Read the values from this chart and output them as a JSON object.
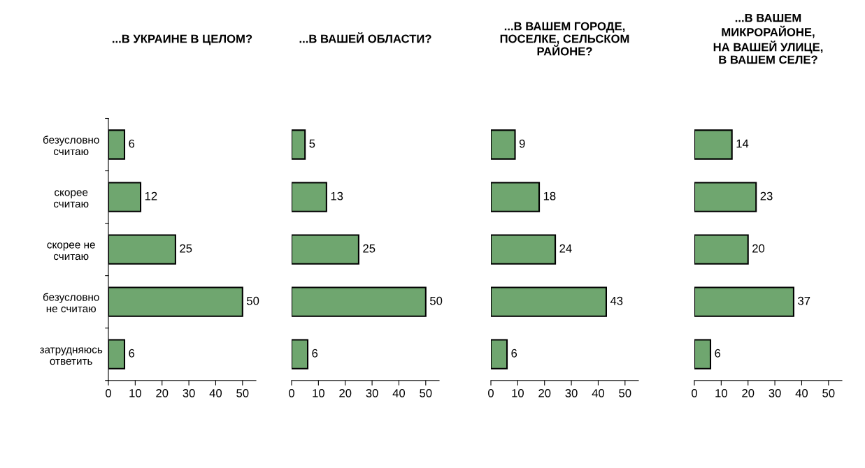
{
  "chart_data": [
    {
      "type": "bar",
      "orientation": "horizontal",
      "title": "...В УКРАИНЕ В ЦЕЛОМ?",
      "categories": [
        "безусловно\nсчитаю",
        "скорее\nсчитаю",
        "скорее не\nсчитаю",
        "безусловно\nне считаю",
        "затрудняюсь\nответить"
      ],
      "values": [
        6,
        12,
        25,
        50,
        6
      ],
      "color": "#6fa66f",
      "xlim": [
        0,
        55
      ],
      "xticks": [
        0,
        10,
        20,
        30,
        40,
        50
      ],
      "data_labels": true,
      "grid": false,
      "legend": false
    },
    {
      "type": "bar",
      "orientation": "horizontal",
      "title": "...В ВАШЕЙ ОБЛАСТИ?",
      "categories": [
        null,
        null,
        null,
        null,
        null
      ],
      "values": [
        5,
        13,
        25,
        50,
        6
      ],
      "color": "#6fa66f",
      "xlim": [
        0,
        55
      ],
      "xticks": [
        0,
        10,
        20,
        30,
        40,
        50
      ],
      "data_labels": true,
      "grid": false,
      "legend": false
    },
    {
      "type": "bar",
      "orientation": "horizontal",
      "title": "...В ВАШЕМ ГОРОДЕ,\nПОСЕЛКЕ, СЕЛЬСКОМ\nРАЙОНЕ?",
      "categories": [
        null,
        null,
        null,
        null,
        null
      ],
      "values": [
        9,
        18,
        24,
        43,
        6
      ],
      "color": "#6fa66f",
      "xlim": [
        0,
        55
      ],
      "xticks": [
        0,
        10,
        20,
        30,
        40,
        50
      ],
      "data_labels": true,
      "grid": false,
      "legend": false
    },
    {
      "type": "bar",
      "orientation": "horizontal",
      "title": "...В ВАШЕМ\nМИКРОРАЙОНЕ,\nНА ВАШЕЙ УЛИЦЕ,\nВ ВАШЕМ СЕЛЕ?",
      "categories": [
        null,
        null,
        null,
        null,
        null
      ],
      "values": [
        14,
        23,
        20,
        37,
        6
      ],
      "color": "#6fa66f",
      "xlim": [
        0,
        55
      ],
      "xticks": [
        0,
        10,
        20,
        30,
        40,
        50
      ],
      "data_labels": true,
      "grid": false,
      "legend": false
    }
  ]
}
